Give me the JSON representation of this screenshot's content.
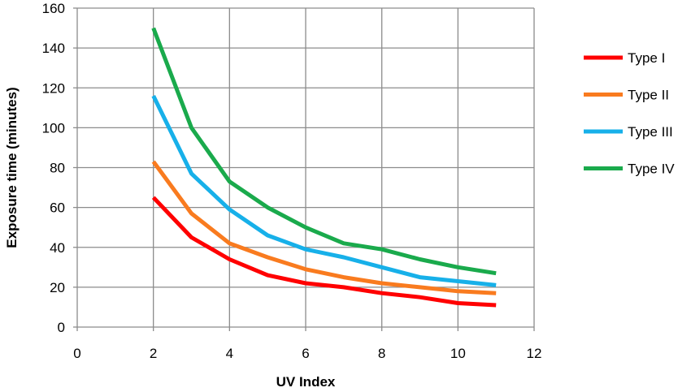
{
  "chart_data": {
    "type": "line",
    "title": "",
    "xlabel": "UV Index",
    "ylabel": "Exposure time (minutes)",
    "xlim": [
      0,
      12
    ],
    "ylim": [
      0,
      160
    ],
    "xticks": [
      0,
      2,
      4,
      6,
      8,
      10,
      12
    ],
    "yticks": [
      0,
      20,
      40,
      60,
      80,
      100,
      120,
      140,
      160
    ],
    "grid": true,
    "legend_position": "right",
    "x": [
      2,
      3,
      4,
      5,
      6,
      7,
      8,
      9,
      10,
      11
    ],
    "series": [
      {
        "name": "Type I",
        "color": "#ff0000",
        "values": [
          65,
          45,
          34,
          26,
          22,
          20,
          17,
          15,
          12,
          11
        ]
      },
      {
        "name": "Type II",
        "color": "#f97b1f",
        "values": [
          83,
          57,
          42,
          35,
          29,
          25,
          22,
          20,
          18,
          17
        ]
      },
      {
        "name": "Type III",
        "color": "#17b0e9",
        "values": [
          116,
          77,
          59,
          46,
          39,
          35,
          30,
          25,
          23,
          21
        ]
      },
      {
        "name": "Type IV",
        "color": "#1aaa4c",
        "values": [
          150,
          100,
          73,
          60,
          50,
          42,
          39,
          34,
          30,
          27
        ]
      }
    ]
  }
}
